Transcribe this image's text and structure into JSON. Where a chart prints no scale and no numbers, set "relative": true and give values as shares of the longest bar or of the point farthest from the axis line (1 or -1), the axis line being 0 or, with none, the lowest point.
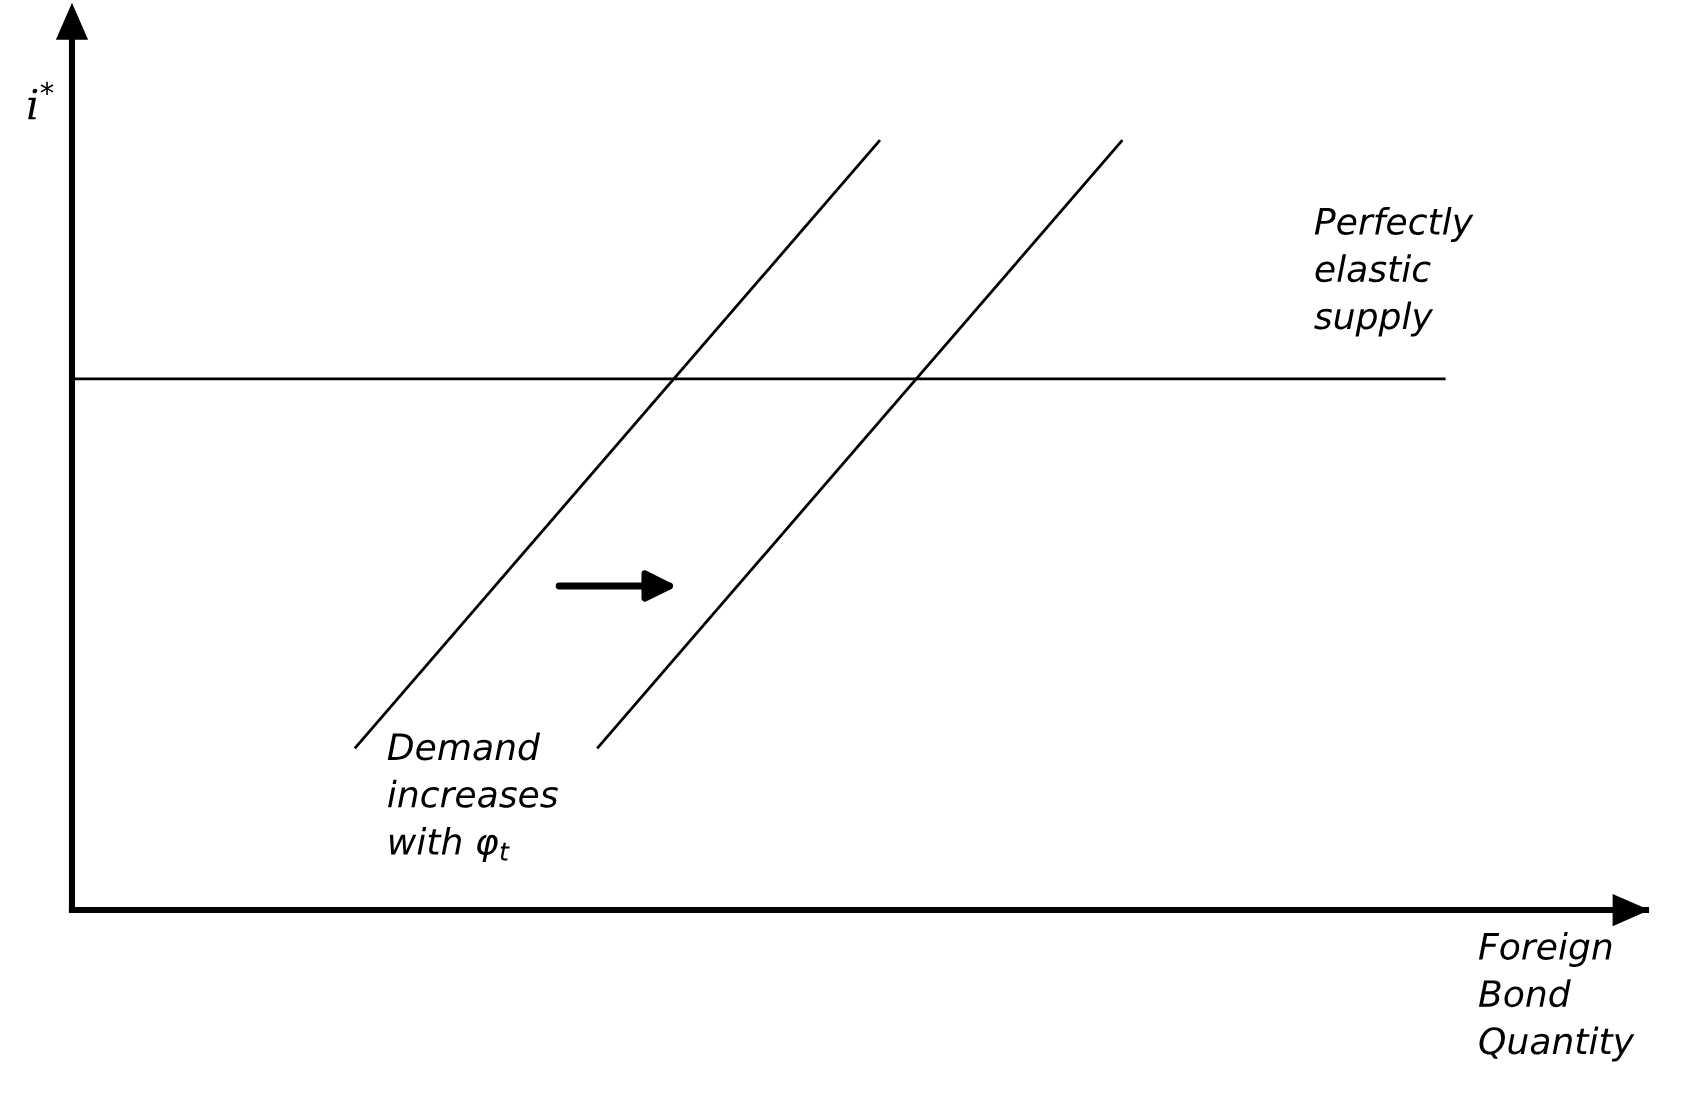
{
  "chart_data": {
    "type": "line",
    "relative": true,
    "ylabel": "i$^{*}$",
    "xlabel": "Foreign\nBond\nQuantity",
    "annotations": [
      "Perfectly\nelastic\nsupply",
      "Demand\nincreases\nwith φ$_{t}$"
    ],
    "categories": [
      null,
      null,
      null,
      null,
      null,
      null,
      null,
      null,
      null,
      null,
      null,
      null,
      null,
      null,
      null,
      null,
      null,
      null,
      null,
      null,
      null,
      null,
      null,
      null,
      null,
      null,
      null,
      null,
      null,
      null,
      null,
      null,
      null,
      null,
      null,
      null,
      null,
      null,
      null
    ],
    "series": [
      {
        "color": "#000000",
        "values": [
          null,
          null,
          null,
          null,
          null,
          null,
          null,
          0.21,
          null,
          null,
          null,
          null,
          null,
          null,
          null,
          null,
          null,
          null,
          null,
          null,
          1,
          null,
          null,
          null,
          null,
          null,
          null,
          null,
          null,
          null,
          null,
          null,
          null,
          null,
          null,
          null,
          null,
          null,
          null
        ]
      },
      {
        "color": "#000000",
        "values": [
          null,
          null,
          null,
          null,
          null,
          null,
          null,
          null,
          null,
          null,
          null,
          null,
          null,
          0.21,
          null,
          null,
          null,
          null,
          null,
          null,
          null,
          null,
          null,
          null,
          null,
          null,
          1,
          null,
          null,
          null,
          null,
          null,
          null,
          null,
          null,
          null,
          null,
          null,
          null
        ]
      },
      {
        "color": "#000000",
        "values": [
          0.69,
          null,
          null,
          null,
          null,
          null,
          null,
          null,
          null,
          null,
          null,
          null,
          null,
          null,
          null,
          null,
          null,
          null,
          null,
          null,
          null,
          null,
          null,
          null,
          null,
          null,
          null,
          null,
          null,
          null,
          null,
          null,
          null,
          null,
          0.69,
          null,
          null,
          null,
          null
        ]
      }
    ],
    "tick_labels": false,
    "legend": false,
    "marker": "none",
    "line_style": "solid"
  }
}
